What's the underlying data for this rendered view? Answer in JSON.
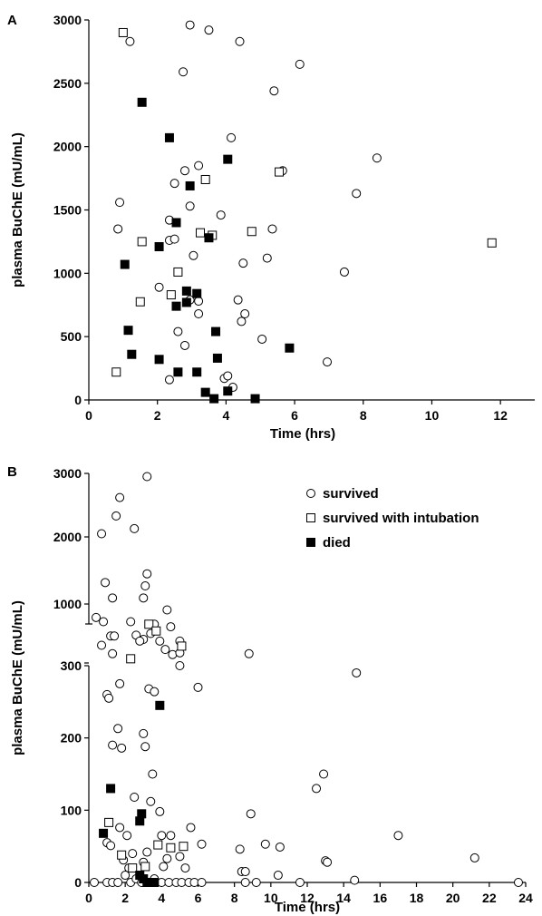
{
  "chart_data": [
    {
      "panel": "A",
      "type": "scatter",
      "xlabel": "Time (hrs)",
      "ylabel": "plasma BuChE (mU/mL)",
      "xlim": [
        0,
        13
      ],
      "ylim": [
        0,
        3000
      ],
      "xticks": [
        "0",
        "2",
        "4",
        "6",
        "8",
        "10",
        "12"
      ],
      "yticks": [
        "0",
        "500",
        "1000",
        "1500",
        "2000",
        "2500",
        "3000"
      ],
      "series": [
        {
          "marker": "open-circle",
          "points": [
            [
              1.2,
              2830
            ],
            [
              2.95,
              2960
            ],
            [
              3.5,
              2920
            ],
            [
              4.4,
              2830
            ],
            [
              2.75,
              2590
            ],
            [
              6.15,
              2650
            ],
            [
              5.4,
              2440
            ],
            [
              4.15,
              2070
            ],
            [
              3.2,
              1850
            ],
            [
              2.8,
              1810
            ],
            [
              5.65,
              1810
            ],
            [
              8.4,
              1910
            ],
            [
              2.5,
              1710
            ],
            [
              7.8,
              1630
            ],
            [
              0.9,
              1560
            ],
            [
              2.95,
              1530
            ],
            [
              0.85,
              1350
            ],
            [
              3.85,
              1460
            ],
            [
              2.35,
              1420
            ],
            [
              5.35,
              1350
            ],
            [
              2.35,
              1260
            ],
            [
              2.5,
              1270
            ],
            [
              4.5,
              1080
            ],
            [
              5.2,
              1120
            ],
            [
              3.05,
              1140
            ],
            [
              7.45,
              1010
            ],
            [
              2.05,
              890
            ],
            [
              4.35,
              790
            ],
            [
              3.2,
              780
            ],
            [
              2.95,
              790
            ],
            [
              3.2,
              680
            ],
            [
              4.55,
              680
            ],
            [
              4.45,
              620
            ],
            [
              2.6,
              540
            ],
            [
              5.05,
              480
            ],
            [
              2.8,
              430
            ],
            [
              6.95,
              300
            ],
            [
              3.95,
              170
            ],
            [
              4.05,
              190
            ],
            [
              2.35,
              160
            ],
            [
              4.2,
              100
            ]
          ]
        },
        {
          "marker": "open-square",
          "points": [
            [
              1.0,
              2900
            ],
            [
              5.55,
              1800
            ],
            [
              3.4,
              1740
            ],
            [
              1.55,
              1250
            ],
            [
              3.25,
              1320
            ],
            [
              3.6,
              1300
            ],
            [
              4.75,
              1330
            ],
            [
              11.75,
              1240
            ],
            [
              2.6,
              1010
            ],
            [
              1.5,
              775
            ],
            [
              2.4,
              830
            ],
            [
              0.8,
              220
            ]
          ]
        },
        {
          "marker": "filled-square",
          "points": [
            [
              1.55,
              2350
            ],
            [
              2.35,
              2070
            ],
            [
              4.05,
              1900
            ],
            [
              2.95,
              1690
            ],
            [
              2.55,
              1400
            ],
            [
              3.5,
              1280
            ],
            [
              2.05,
              1210
            ],
            [
              1.05,
              1070
            ],
            [
              2.85,
              860
            ],
            [
              3.15,
              840
            ],
            [
              2.85,
              770
            ],
            [
              2.55,
              740
            ],
            [
              1.15,
              550
            ],
            [
              3.7,
              540
            ],
            [
              1.25,
              360
            ],
            [
              5.85,
              410
            ],
            [
              2.05,
              320
            ],
            [
              3.75,
              330
            ],
            [
              2.6,
              220
            ],
            [
              3.15,
              220
            ],
            [
              3.4,
              60
            ],
            [
              4.05,
              70
            ],
            [
              3.65,
              10
            ],
            [
              4.85,
              10
            ]
          ]
        }
      ]
    },
    {
      "panel": "B",
      "type": "scatter",
      "xlabel": "Time (hrs)",
      "ylabel": "plasma BuChE (mU/mL)",
      "xlim": [
        0,
        24
      ],
      "ylim_lower": [
        0,
        300
      ],
      "ylim_upper": [
        300,
        3000
      ],
      "xticks": [
        "0",
        "2",
        "4",
        "6",
        "8",
        "10",
        "12",
        "14",
        "16",
        "18",
        "20",
        "22",
        "24"
      ],
      "yticks": [
        "0",
        "100",
        "200",
        "300",
        "300",
        "1000",
        "2000",
        "3000"
      ],
      "legend": {
        "placement": "top-right",
        "entries": [
          "survived",
          "survived with intubation",
          "died"
        ]
      },
      "series": [
        {
          "name": "survived",
          "marker": "open-circle",
          "points": [
            [
              3.2,
              2950
            ],
            [
              0.7,
              2050
            ],
            [
              1.7,
              2620
            ],
            [
              1.5,
              2330
            ],
            [
              2.5,
              2130
            ],
            [
              0.9,
              1320
            ],
            [
              3.2,
              1450
            ],
            [
              1.3,
              1090
            ],
            [
              3.1,
              1270
            ],
            [
              3.0,
              1090
            ],
            [
              0.4,
              840
            ],
            [
              0.8,
              790
            ],
            [
              2.3,
              790
            ],
            [
              1.2,
              620
            ],
            [
              1.4,
              620
            ],
            [
              0.7,
              510
            ],
            [
              1.3,
              410
            ],
            [
              2.6,
              630
            ],
            [
              3.0,
              580
            ],
            [
              3.6,
              760
            ],
            [
              3.9,
              560
            ],
            [
              4.3,
              930
            ],
            [
              4.5,
              730
            ],
            [
              5.0,
              560
            ],
            [
              4.2,
              460
            ],
            [
              4.6,
              400
            ],
            [
              5.0,
              420
            ],
            [
              8.8,
              410
            ],
            [
              3.4,
              650
            ],
            [
              2.8,
              560
            ],
            [
              5.0,
              300
            ],
            [
              14.7,
              290
            ],
            [
              6.0,
              270
            ],
            [
              1.7,
              275
            ],
            [
              3.3,
              268
            ],
            [
              3.6,
              264
            ],
            [
              1.0,
              260
            ],
            [
              1.1,
              255
            ],
            [
              1.6,
              213
            ],
            [
              3.0,
              206
            ],
            [
              1.3,
              190
            ],
            [
              1.8,
              186
            ],
            [
              3.1,
              188
            ],
            [
              3.5,
              150
            ],
            [
              2.5,
              118
            ],
            [
              3.4,
              112
            ],
            [
              3.9,
              98
            ],
            [
              12.9,
              150
            ],
            [
              12.5,
              130
            ],
            [
              8.9,
              95
            ],
            [
              1.7,
              76
            ],
            [
              5.6,
              76
            ],
            [
              17.0,
              65
            ],
            [
              1.0,
              55
            ],
            [
              1.2,
              51
            ],
            [
              2.1,
              65
            ],
            [
              4.0,
              65
            ],
            [
              4.5,
              65
            ],
            [
              6.2,
              53
            ],
            [
              9.7,
              53
            ],
            [
              10.5,
              49
            ],
            [
              8.3,
              46
            ],
            [
              13.0,
              30
            ],
            [
              13.1,
              28
            ],
            [
              21.2,
              34
            ],
            [
              1.9,
              31
            ],
            [
              3.0,
              28
            ],
            [
              4.3,
              33
            ],
            [
              2.4,
              40
            ],
            [
              3.2,
              42
            ],
            [
              5.0,
              36
            ],
            [
              2.2,
              20
            ],
            [
              4.1,
              22
            ],
            [
              5.3,
              20
            ],
            [
              0.3,
              0
            ],
            [
              1.0,
              0
            ],
            [
              1.3,
              0
            ],
            [
              1.6,
              0
            ],
            [
              2.0,
              10
            ],
            [
              2.3,
              0
            ],
            [
              2.6,
              5
            ],
            [
              2.9,
              0
            ],
            [
              3.3,
              0
            ],
            [
              3.6,
              5
            ],
            [
              4.0,
              0
            ],
            [
              4.4,
              0
            ],
            [
              4.8,
              0
            ],
            [
              5.1,
              0
            ],
            [
              5.5,
              0
            ],
            [
              5.8,
              0
            ],
            [
              6.2,
              0
            ],
            [
              8.6,
              0
            ],
            [
              9.2,
              0
            ],
            [
              10.4,
              10
            ],
            [
              11.6,
              0
            ],
            [
              14.6,
              3
            ],
            [
              23.6,
              0
            ],
            [
              8.4,
              15
            ],
            [
              8.6,
              15
            ]
          ]
        },
        {
          "name": "survived with intubation",
          "marker": "open-square",
          "points": [
            [
              2.3,
              350
            ],
            [
              3.3,
              760
            ],
            [
              3.7,
              680
            ],
            [
              5.1,
              500
            ],
            [
              1.1,
              83
            ],
            [
              1.8,
              38
            ],
            [
              3.8,
              52
            ],
            [
              4.5,
              48
            ],
            [
              5.2,
              50
            ],
            [
              2.4,
              20
            ],
            [
              3.1,
              22
            ]
          ]
        },
        {
          "name": "died",
          "marker": "filled-square",
          "points": [
            [
              3.9,
              245
            ],
            [
              1.2,
              130
            ],
            [
              2.9,
              95
            ],
            [
              2.8,
              85
            ],
            [
              0.8,
              68
            ],
            [
              2.8,
              10
            ],
            [
              3.0,
              5
            ],
            [
              3.2,
              0
            ],
            [
              3.6,
              0
            ]
          ]
        }
      ]
    }
  ]
}
